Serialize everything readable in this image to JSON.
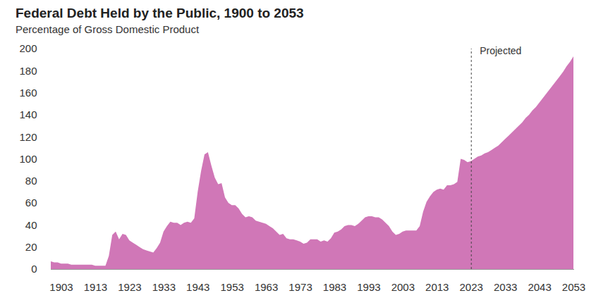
{
  "chart_data": {
    "type": "area",
    "title": "Federal Debt Held by the Public, 1900 to 2053",
    "subtitle": "Percentage of Gross Domestic Product",
    "color": "#d077b7",
    "x": [
      1900,
      1901,
      1902,
      1903,
      1904,
      1905,
      1906,
      1907,
      1908,
      1909,
      1910,
      1911,
      1912,
      1913,
      1914,
      1915,
      1916,
      1917,
      1918,
      1919,
      1920,
      1921,
      1922,
      1923,
      1924,
      1925,
      1926,
      1927,
      1928,
      1929,
      1930,
      1931,
      1932,
      1933,
      1934,
      1935,
      1936,
      1937,
      1938,
      1939,
      1940,
      1941,
      1942,
      1943,
      1944,
      1945,
      1946,
      1947,
      1948,
      1949,
      1950,
      1951,
      1952,
      1953,
      1954,
      1955,
      1956,
      1957,
      1958,
      1959,
      1960,
      1961,
      1962,
      1963,
      1964,
      1965,
      1966,
      1967,
      1968,
      1969,
      1970,
      1971,
      1972,
      1973,
      1974,
      1975,
      1976,
      1977,
      1978,
      1979,
      1980,
      1981,
      1982,
      1983,
      1984,
      1985,
      1986,
      1987,
      1988,
      1989,
      1990,
      1991,
      1992,
      1993,
      1994,
      1995,
      1996,
      1997,
      1998,
      1999,
      2000,
      2001,
      2002,
      2003,
      2004,
      2005,
      2006,
      2007,
      2008,
      2009,
      2010,
      2011,
      2012,
      2013,
      2014,
      2015,
      2016,
      2017,
      2018,
      2019,
      2020,
      2021,
      2022,
      2023,
      2024,
      2025,
      2026,
      2027,
      2028,
      2029,
      2030,
      2031,
      2032,
      2033,
      2034,
      2035,
      2036,
      2037,
      2038,
      2039,
      2040,
      2041,
      2042,
      2043,
      2044,
      2045,
      2046,
      2047,
      2048,
      2049,
      2050,
      2051,
      2052,
      2053
    ],
    "values": [
      7,
      6,
      6,
      5,
      5,
      5,
      4,
      4,
      4,
      4,
      4,
      4,
      4,
      3,
      3,
      3,
      3,
      12,
      31,
      34,
      27,
      32,
      31,
      26,
      24,
      22,
      20,
      18,
      17,
      16,
      15,
      19,
      24,
      34,
      39,
      43,
      42,
      42,
      40,
      42,
      43,
      42,
      46,
      70,
      89,
      104,
      106,
      94,
      83,
      77,
      78,
      65,
      60,
      58,
      58,
      55,
      50,
      47,
      48,
      47,
      44,
      43,
      42,
      41,
      39,
      37,
      34,
      31,
      32,
      28,
      27,
      27,
      26,
      25,
      23,
      24,
      27,
      27,
      27,
      25,
      26,
      25,
      28,
      33,
      34,
      36,
      39,
      40,
      40,
      39,
      41,
      44,
      47,
      48,
      48,
      47,
      47,
      45,
      42,
      39,
      34,
      31,
      32,
      34,
      35,
      35,
      35,
      35,
      39,
      52,
      61,
      66,
      70,
      72,
      73,
      72,
      76,
      76,
      77,
      79,
      100,
      99,
      97,
      98,
      100,
      102,
      103,
      105,
      106,
      108,
      110,
      112,
      115,
      118,
      121,
      124,
      127,
      130,
      133,
      137,
      140,
      144,
      147,
      151,
      155,
      159,
      163,
      167,
      171,
      175,
      179,
      184,
      188,
      193
    ],
    "xlim": [
      1900,
      2053
    ],
    "xticks": [
      1903,
      1913,
      1923,
      1933,
      1943,
      1953,
      1963,
      1973,
      1983,
      1993,
      2003,
      2013,
      2023,
      2033,
      2043,
      2053
    ],
    "ylim": [
      0,
      200
    ],
    "yticks": [
      0,
      20,
      40,
      60,
      80,
      100,
      120,
      140,
      160,
      180,
      200
    ],
    "grid": false,
    "annotations": [
      {
        "x": 2023,
        "text": "Projected"
      }
    ]
  }
}
